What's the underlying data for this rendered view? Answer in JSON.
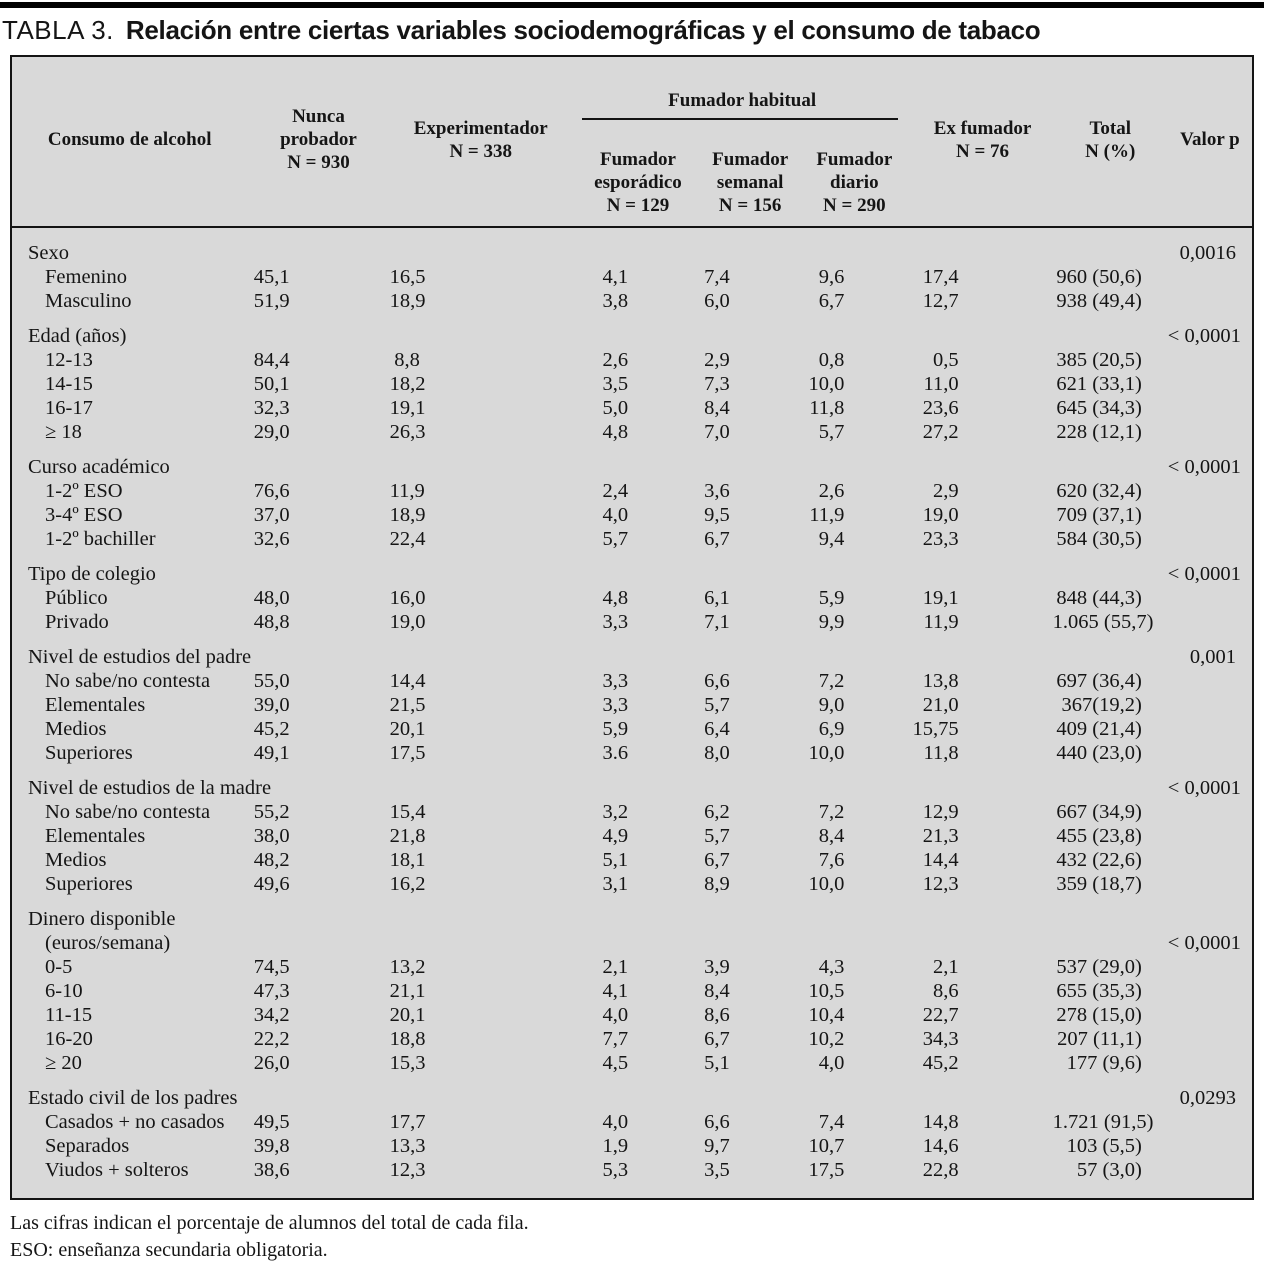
{
  "title": {
    "label": "TABLA 3.",
    "text": "Relación entre ciertas variables sociodemográficas y el consumo de tabaco"
  },
  "table": {
    "header": {
      "col1": "Consumo de alcohol",
      "nunca": "Nunca\nprobador\nN = 930",
      "experimentador": "Experimentador\nN = 338",
      "fumador_habitual": "Fumador habitual",
      "esporadico": "Fumador\nesporádico\nN = 129",
      "semanal": "Fumador\nsemanal\nN = 156",
      "diario": "Fumador\ndiario\nN = 290",
      "ex_fumador": "Ex fumador\nN = 76",
      "total": "Total\nN (%)",
      "valor_p": "Valor p"
    },
    "sections": [
      {
        "label_lines": [
          "Sexo"
        ],
        "p": "0,0016",
        "rows": [
          {
            "label": "Femenino",
            "values": [
              "45,1",
              "16,5",
              "4,1",
              "7,4",
              "9,6",
              "17,4",
              "960 (50,6)"
            ]
          },
          {
            "label": "Masculino",
            "values": [
              "51,9",
              "18,9",
              "3,8",
              "6,0",
              "6,7",
              "12,7",
              "938 (49,4)"
            ]
          }
        ]
      },
      {
        "label_lines": [
          "Edad (años)"
        ],
        "p": "< 0,0001",
        "rows": [
          {
            "label": "12-13",
            "values": [
              "84,4",
              "8,8",
              "2,6",
              "2,9",
              "0,8",
              "0,5",
              "385 (20,5)"
            ]
          },
          {
            "label": "14-15",
            "values": [
              "50,1",
              "18,2",
              "3,5",
              "7,3",
              "10,0",
              "11,0",
              "621 (33,1)"
            ]
          },
          {
            "label": "16-17",
            "values": [
              "32,3",
              "19,1",
              "5,0",
              "8,4",
              "11,8",
              "23,6",
              "645 (34,3)"
            ]
          },
          {
            "label": "≥ 18",
            "values": [
              "29,0",
              "26,3",
              "4,8",
              "7,0",
              "5,7",
              "27,2",
              "228 (12,1)"
            ]
          }
        ]
      },
      {
        "label_lines": [
          "Curso académico"
        ],
        "p": "< 0,0001",
        "rows": [
          {
            "label": "1-2º ESO",
            "values": [
              "76,6",
              "11,9",
              "2,4",
              "3,6",
              "2,6",
              "2,9",
              "620 (32,4)"
            ]
          },
          {
            "label": "3-4º ESO",
            "values": [
              "37,0",
              "18,9",
              "4,0",
              "9,5",
              "11,9",
              "19,0",
              "709 (37,1)"
            ]
          },
          {
            "label": "1-2º bachiller",
            "values": [
              "32,6",
              "22,4",
              "5,7",
              "6,7",
              "9,4",
              "23,3",
              "584 (30,5)"
            ]
          }
        ]
      },
      {
        "label_lines": [
          "Tipo de colegio"
        ],
        "p": "< 0,0001",
        "rows": [
          {
            "label": "Público",
            "values": [
              "48,0",
              "16,0",
              "4,8",
              "6,1",
              "5,9",
              "19,1",
              "848 (44,3)"
            ]
          },
          {
            "label": "Privado",
            "values": [
              "48,8",
              "19,0",
              "3,3",
              "7,1",
              "9,9",
              "11,9",
              "1.065 (55,7)"
            ]
          }
        ]
      },
      {
        "label_lines": [
          "Nivel de estudios del padre"
        ],
        "p": "0,001",
        "rows": [
          {
            "label": "No sabe/no contesta",
            "values": [
              "55,0",
              "14,4",
              "3,3",
              "6,6",
              "7,2",
              "13,8",
              "697 (36,4)"
            ]
          },
          {
            "label": "Elementales",
            "values": [
              "39,0",
              "21,5",
              "3,3",
              "5,7",
              "9,0",
              "21,0",
              "367(19,2)"
            ]
          },
          {
            "label": "Medios",
            "values": [
              "45,2",
              "20,1",
              "5,9",
              "6,4",
              "6,9",
              "15,75",
              "409 (21,4)"
            ]
          },
          {
            "label": "Superiores",
            "values": [
              "49,1",
              "17,5",
              "3.6",
              "8,0",
              "10,0",
              "11,8",
              "440 (23,0)"
            ]
          }
        ]
      },
      {
        "label_lines": [
          "Nivel de estudios de la madre"
        ],
        "p": "< 0,0001",
        "rows": [
          {
            "label": "No sabe/no contesta",
            "values": [
              "55,2",
              "15,4",
              "3,2",
              "6,2",
              "7,2",
              "12,9",
              "667 (34,9)"
            ]
          },
          {
            "label": "Elementales",
            "values": [
              "38,0",
              "21,8",
              "4,9",
              "5,7",
              "8,4",
              "21,3",
              "455 (23,8)"
            ]
          },
          {
            "label": "Medios",
            "values": [
              "48,2",
              "18,1",
              "5,1",
              "6,7",
              "7,6",
              "14,4",
              "432 (22,6)"
            ]
          },
          {
            "label": "Superiores",
            "values": [
              "49,6",
              "16,2",
              "3,1",
              "8,9",
              "10,0",
              "12,3",
              "359 (18,7)"
            ]
          }
        ]
      },
      {
        "label_lines": [
          "Dinero disponible",
          "(euros/semana)"
        ],
        "p": "< 0,0001",
        "rows": [
          {
            "label": "0-5",
            "values": [
              "74,5",
              "13,2",
              "2,1",
              "3,9",
              "4,3",
              "2,1",
              "537 (29,0)"
            ]
          },
          {
            "label": "6-10",
            "values": [
              "47,3",
              "21,1",
              "4,1",
              "8,4",
              "10,5",
              "8,6",
              "655 (35,3)"
            ]
          },
          {
            "label": "11-15",
            "values": [
              "34,2",
              "20,1",
              "4,0",
              "8,6",
              "10,4",
              "22,7",
              "278 (15,0)"
            ]
          },
          {
            "label": "16-20",
            "values": [
              "22,2",
              "18,8",
              "7,7",
              "6,7",
              "10,2",
              "34,3",
              "207 (11,1)"
            ]
          },
          {
            "label": "≥ 20",
            "values": [
              "26,0",
              "15,3",
              "4,5",
              "5,1",
              "4,0",
              "45,2",
              "177 (9,6)"
            ]
          }
        ]
      },
      {
        "label_lines": [
          "Estado civil de los padres"
        ],
        "p": "0,0293",
        "rows": [
          {
            "label": "Casados + no casados",
            "values": [
              "49,5",
              "17,7",
              "4,0",
              "6,6",
              "7,4",
              "14,8",
              "1.721 (91,5)"
            ]
          },
          {
            "label": "Separados",
            "values": [
              "39,8",
              "13,3",
              "1,9",
              "9,7",
              "10,7",
              "14,6",
              "103 (5,5)"
            ]
          },
          {
            "label": "Viudos + solteros",
            "values": [
              "38,6",
              "12,3",
              "5,3",
              "3,5",
              "17,5",
              "22,8",
              "57 (3,0)"
            ]
          }
        ]
      }
    ]
  },
  "footnotes": [
    "Las cifras indican el porcentaje de alumnos del total de cada fila.",
    "ESO: enseñanza secundaria obligatoria."
  ],
  "colors": {
    "table_bg": "#d9d9d9",
    "rule": "#000000",
    "text": "#151515"
  }
}
